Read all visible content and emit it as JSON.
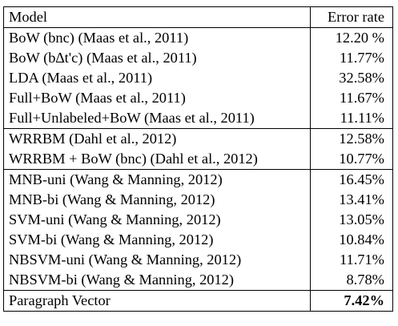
{
  "table": {
    "headers": {
      "model": "Model",
      "error": "Error rate"
    },
    "groups": [
      {
        "rows": [
          {
            "model": "BoW (bnc) (Maas et al., 2011)",
            "error": "12.20 %"
          },
          {
            "model": "BoW (b∆t'c) (Maas et al., 2011)",
            "error": "11.77%"
          },
          {
            "model": "LDA (Maas et al., 2011)",
            "error": "32.58%"
          },
          {
            "model": "Full+BoW (Maas et al., 2011)",
            "error": "11.67%"
          },
          {
            "model": "Full+Unlabeled+BoW (Maas et al., 2011)",
            "error": "11.11%"
          }
        ]
      },
      {
        "rows": [
          {
            "model": "WRRBM (Dahl et al., 2012)",
            "error": "12.58%"
          },
          {
            "model": "WRRBM + BoW (bnc) (Dahl et al., 2012)",
            "error": "10.77%"
          }
        ]
      },
      {
        "rows": [
          {
            "model": "MNB-uni (Wang & Manning, 2012)",
            "error": "16.45%"
          },
          {
            "model": "MNB-bi (Wang & Manning, 2012)",
            "error": "13.41%"
          },
          {
            "model": "SVM-uni (Wang & Manning, 2012)",
            "error": "13.05%"
          },
          {
            "model": "SVM-bi (Wang & Manning, 2012)",
            "error": "10.84%"
          },
          {
            "model": "NBSVM-uni (Wang & Manning, 2012)",
            "error": "11.71%"
          },
          {
            "model": "NBSVM-bi (Wang & Manning, 2012)",
            "error": "8.78%"
          }
        ]
      },
      {
        "rows": [
          {
            "model": "Paragraph Vector",
            "error": "7.42%",
            "best": true
          }
        ]
      }
    ]
  }
}
